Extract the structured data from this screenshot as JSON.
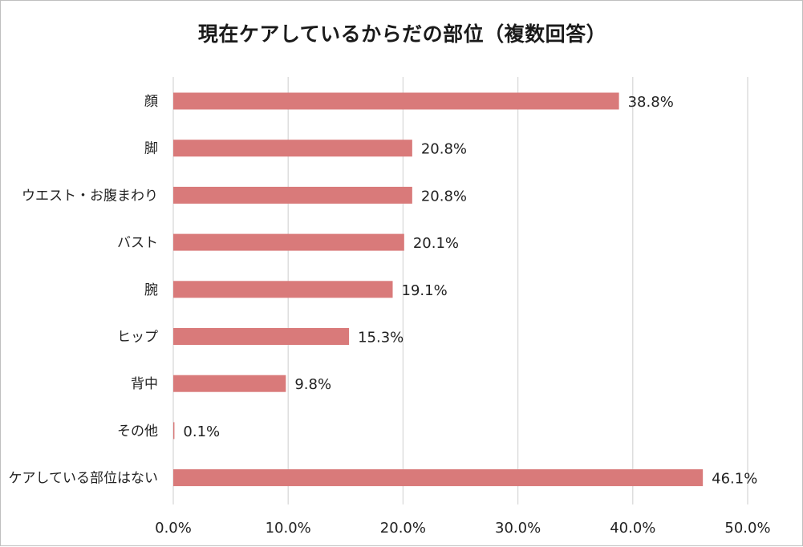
{
  "chart_data": {
    "type": "bar",
    "orientation": "horizontal",
    "title": "現在ケアしているからだの部位（複数回答）",
    "categories": [
      "顔",
      "脚",
      "ウエスト・お腹まわり",
      "バスト",
      "腕",
      "ヒップ",
      "背中",
      "その他",
      "ケアしている部位はない"
    ],
    "values": [
      38.8,
      20.8,
      20.8,
      20.1,
      19.1,
      15.3,
      9.8,
      0.1,
      46.1
    ],
    "value_labels": [
      "38.8%",
      "20.8%",
      "20.8%",
      "20.1%",
      "19.1%",
      "15.3%",
      "9.8%",
      "0.1%",
      "46.1%"
    ],
    "xlim": [
      0,
      50
    ],
    "x_ticks": [
      0,
      10,
      20,
      30,
      40,
      50
    ],
    "x_tick_labels": [
      "0.0%",
      "10.0%",
      "20.0%",
      "30.0%",
      "40.0%",
      "50.0%"
    ],
    "xlabel": "",
    "ylabel": "",
    "grid": "vertical",
    "legend": "none",
    "bar_color": "#d97a7a",
    "grid_color": "#d9d9d9"
  }
}
